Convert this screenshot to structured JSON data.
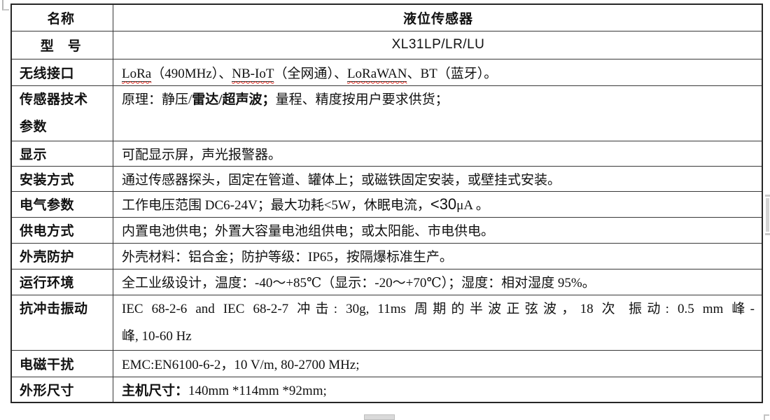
{
  "document": {
    "type": "product-specification-table",
    "rows": [
      {
        "key": "name",
        "label": "名称",
        "lines": [
          [
            {
              "t": "液位传感器"
            }
          ]
        ]
      },
      {
        "key": "model",
        "label": "型　号",
        "lines": [
          [
            {
              "t": "XL31LP/LR/LU"
            }
          ]
        ]
      },
      {
        "key": "wireless-interface",
        "label": "无线接口",
        "lines": [
          [
            {
              "t": "LoRa",
              "spell": true
            },
            {
              "t": "（490MHz）、"
            },
            {
              "t": "NB-IoT",
              "spell": true
            },
            {
              "t": "（全网通）、"
            },
            {
              "t": "LoRaWAN",
              "spell": true
            },
            {
              "t": "、BT（蓝牙）。"
            }
          ]
        ]
      },
      {
        "key": "sensor-tech-params",
        "label": "传感器技术\n参数",
        "lines": [
          [
            {
              "t": "原理：静压/"
            },
            {
              "t": "雷达/超声波；",
              "bold": true
            },
            {
              "t": "量程、精度按用户要求供货；"
            }
          ]
        ]
      },
      {
        "key": "display",
        "label": "显示",
        "lines": [
          [
            {
              "t": "可配显示屏，声光报警器。"
            }
          ]
        ]
      },
      {
        "key": "installation",
        "label": "安装方式",
        "lines": [
          [
            {
              "t": "通过传感器探头，固定在管道、罐体上；或磁铁固定安装，或壁挂式安装。"
            }
          ]
        ]
      },
      {
        "key": "electrical-params",
        "label": "电气参数",
        "lines": [
          [
            {
              "t": "工作电压范围 DC6-24V；最大功耗<5W，休眠电流，"
            },
            {
              "t": "<30",
              "sans": true
            },
            {
              "t": "μA 。"
            }
          ]
        ]
      },
      {
        "key": "power-supply",
        "label": "供电方式",
        "lines": [
          [
            {
              "t": "内置电池供电；外置大容量电池组供电；或太阳能、市电供电。"
            }
          ]
        ]
      },
      {
        "key": "enclosure-protection",
        "label": "外壳防护",
        "lines": [
          [
            {
              "t": "外壳材料：铝合金；防护等级：IP65，按隔爆标准生产。"
            }
          ]
        ]
      },
      {
        "key": "operating-environment",
        "label": "运行环境",
        "lines": [
          [
            {
              "t": "全工业级设计，温度：-40～+85℃（显示：-20～+70℃）；湿度：相对湿度 95%。"
            }
          ]
        ]
      },
      {
        "key": "shock-vibration",
        "label": "抗冲击振动",
        "lines": [
          [
            {
              "t": "IEC 68-2-6 and IEC 68-2-7 冲击: 30g, 11ms 周期的半波正弦波，18 次 振动: 0.5 mm 峰-"
            }
          ],
          [
            {
              "t": "峰, 10-60 Hz"
            }
          ]
        ],
        "stretch_first_line": true
      },
      {
        "key": "emc",
        "label": "电磁干扰",
        "lines": [
          [
            {
              "t": "EMC:EN6100-6-2，10 V/m, 80-2700 MHz;"
            }
          ]
        ]
      },
      {
        "key": "dimensions",
        "label": "外形尺寸",
        "lines": [
          [
            {
              "t": "主机尺寸：",
              "bold": true
            },
            {
              "t": "140mm *114mm *92mm;"
            }
          ]
        ]
      }
    ]
  },
  "colors": {
    "border_outer": "#262626",
    "border_inner": "#383838",
    "text": "#111111",
    "spell_underline": "#e02b20",
    "scrollbar": "#d4d4d4"
  }
}
